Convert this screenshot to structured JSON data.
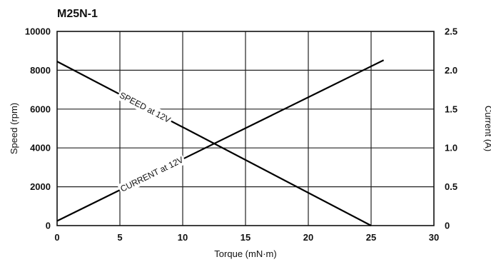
{
  "chart_data": {
    "type": "line",
    "title": "M25N-1",
    "xlabel": "Torque (mN·m)",
    "ylabel": "Speed (rpm)",
    "y2label": "Current (A)",
    "xlim": [
      0,
      30
    ],
    "ylim": [
      0,
      10000
    ],
    "y2lim": [
      0,
      2.5
    ],
    "xticks": [
      "0",
      "5",
      "10",
      "15",
      "20",
      "25",
      "30"
    ],
    "yticks": [
      "0",
      "2000",
      "4000",
      "6000",
      "8000",
      "10000"
    ],
    "y2ticks": [
      "0",
      "0.5",
      "1.0",
      "1.5",
      "2.0",
      "2.5"
    ],
    "grid": true,
    "series": [
      {
        "name": "SPEED at 12V",
        "axis": "left",
        "x": [
          0,
          25
        ],
        "y": [
          8450,
          0
        ]
      },
      {
        "name": "CURRENT at 12V",
        "axis": "right",
        "x": [
          0,
          26
        ],
        "y": [
          0.06,
          2.13
        ]
      }
    ]
  }
}
